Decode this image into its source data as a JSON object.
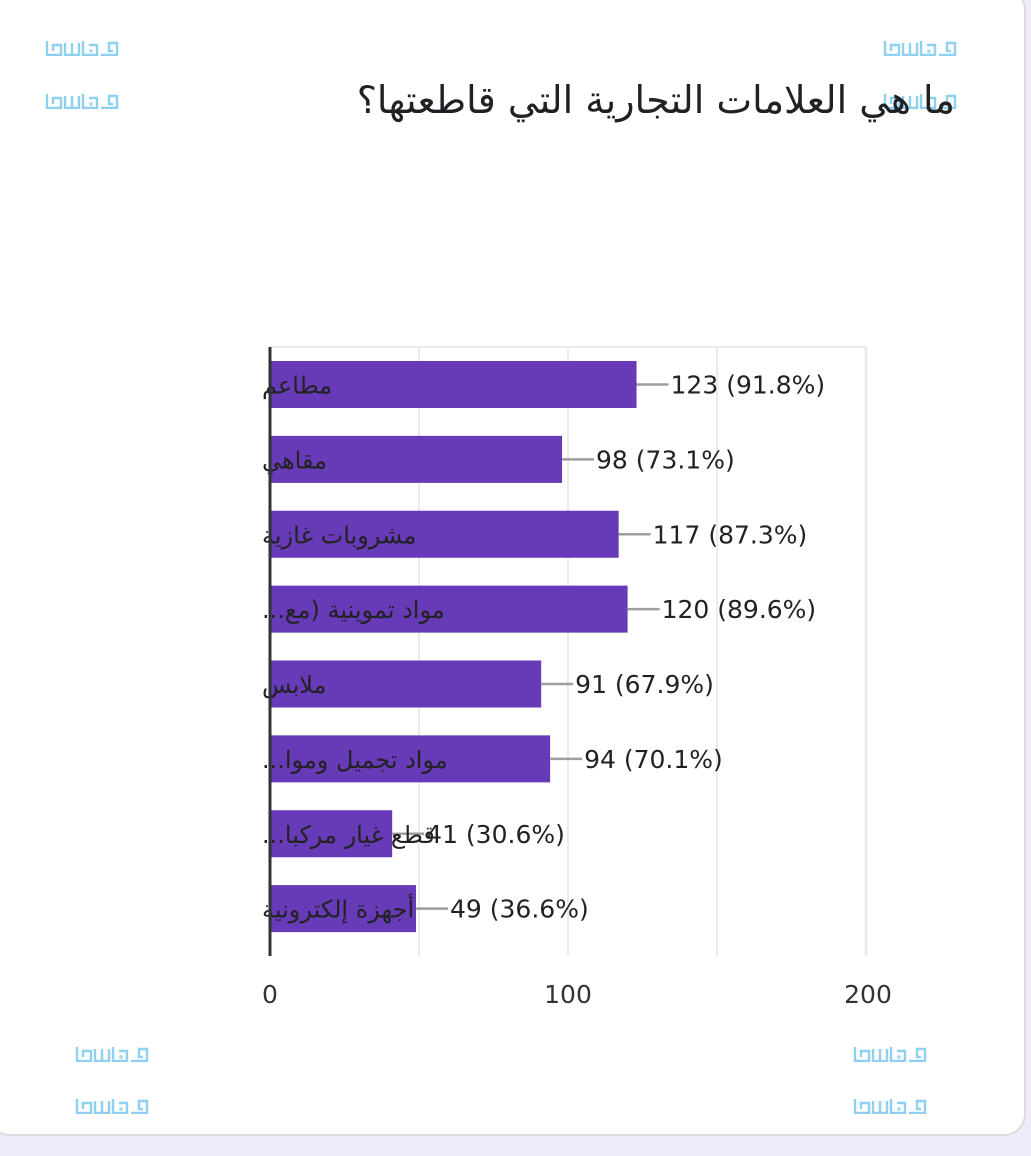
{
  "question_title": "ما هي العلامات التجارية التي قاطعتها؟",
  "watermark_text": "موسوعة",
  "colors": {
    "bar": "#673ab7",
    "grid": "#ebebeb",
    "axis": "#333333",
    "leader": "#9e9e9e",
    "background": "#efebf8"
  },
  "chart_data": {
    "type": "bar",
    "orientation": "horizontal",
    "title": "ما هي العلامات التجارية التي قاطعتها؟",
    "categories": [
      "مطاعم",
      "مقاهي",
      "مشروبات غازية",
      "مواد تموينية (مع...",
      "ملابس",
      "مواد تجميل وموا...",
      "قطع غيار مركبا...",
      "أجهزة إلكترونية"
    ],
    "values": [
      123,
      98,
      117,
      120,
      91,
      94,
      41,
      49
    ],
    "data_labels": [
      "123 (91.8%)",
      "98 (73.1%)",
      "117 (87.3%)",
      "120 (89.6%)",
      "91 (67.9%)",
      "94 (70.1%)",
      "41 (30.6%)",
      "49 (36.6%)"
    ],
    "xlim": [
      0,
      200
    ],
    "x_ticks": [
      0,
      100,
      200
    ],
    "x_tick_labels": [
      "0",
      "100",
      "200"
    ],
    "gridlines": [
      50,
      100,
      150,
      200
    ],
    "grid": true,
    "legend": "none"
  }
}
